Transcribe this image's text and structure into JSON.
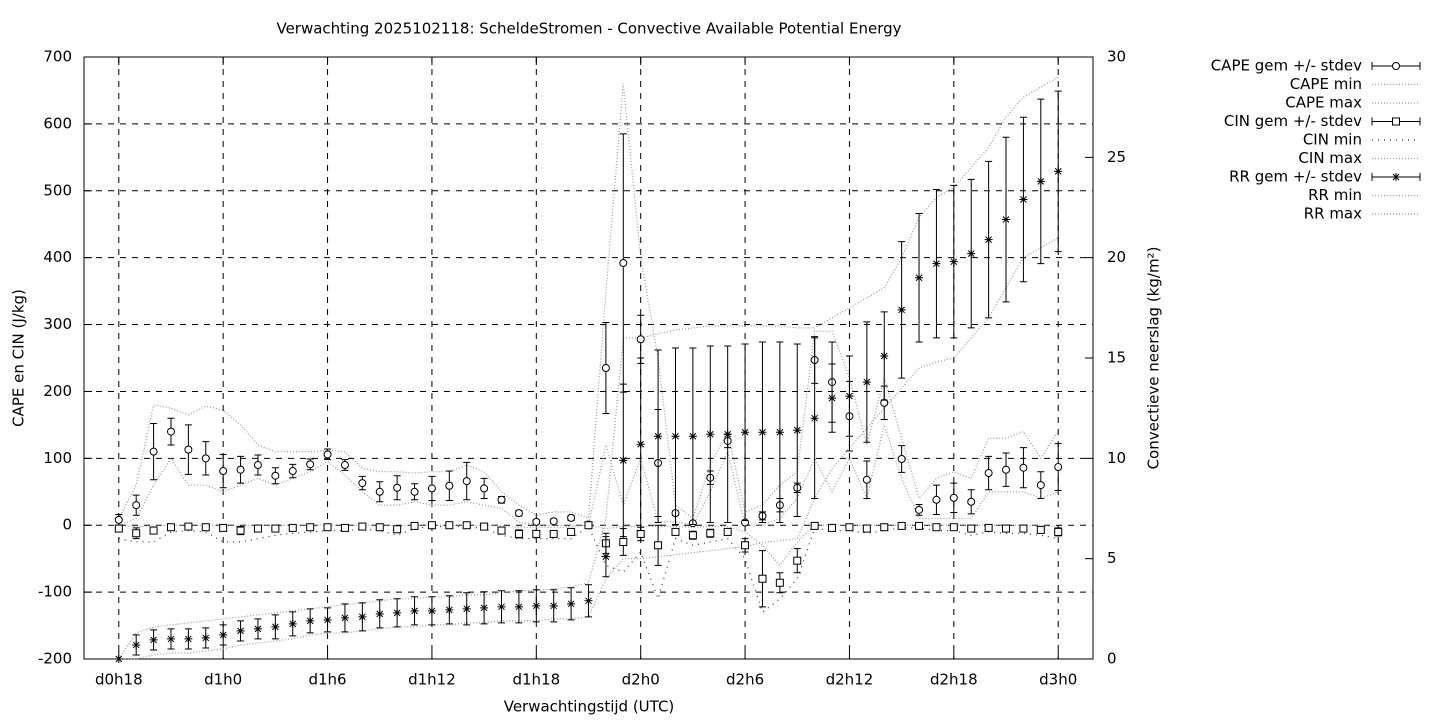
{
  "chart_data": {
    "type": "errorbar",
    "title": "Verwachting 2025102118: ScheldeStromen - Convective Available Potential Energy",
    "xlabel": "Verwachtingstijd (UTC)",
    "ylabel": "CAPE en CIN (J/kg)",
    "y2label": "Convectieve neerslag (kg/m²)",
    "grid": true,
    "legend": "outside-top-right",
    "xlim": [
      16,
      74
    ],
    "xticks": [
      {
        "value": 18,
        "label": "d0h18"
      },
      {
        "value": 24,
        "label": "d1h0"
      },
      {
        "value": 30,
        "label": "d1h6"
      },
      {
        "value": 36,
        "label": "d1h12"
      },
      {
        "value": 42,
        "label": "d1h18"
      },
      {
        "value": 48,
        "label": "d2h0"
      },
      {
        "value": 54,
        "label": "d2h6"
      },
      {
        "value": 60,
        "label": "d2h12"
      },
      {
        "value": 66,
        "label": "d2h18"
      },
      {
        "value": 72,
        "label": "d3h0"
      }
    ],
    "ylim": [
      -200,
      700
    ],
    "yticks": [
      -200,
      -100,
      0,
      100,
      200,
      300,
      400,
      500,
      600,
      700
    ],
    "y2lim": [
      0,
      30
    ],
    "y2ticks": [
      0,
      5,
      10,
      15,
      20,
      25,
      30
    ],
    "x": [
      18,
      19,
      20,
      21,
      22,
      23,
      24,
      25,
      26,
      27,
      28,
      29,
      30,
      31,
      32,
      33,
      34,
      35,
      36,
      37,
      38,
      39,
      40,
      41,
      42,
      43,
      44,
      45,
      46,
      47,
      48,
      49,
      50,
      51,
      52,
      53,
      54,
      55,
      56,
      57,
      58,
      59,
      60,
      61,
      62,
      63,
      64,
      65,
      66,
      67,
      68,
      69,
      70,
      71,
      72
    ],
    "series": [
      {
        "name": "CAPE gem +/- stdev",
        "style": "errorbars",
        "marker": "circle",
        "color": "#000000",
        "values": [
          8,
          30,
          110,
          140,
          113,
          100,
          81,
          83,
          90,
          74,
          81,
          91,
          106,
          90,
          63,
          50,
          56,
          50,
          55,
          59,
          66,
          55,
          38,
          18,
          5,
          6,
          11,
          1,
          235,
          392,
          278,
          93,
          18,
          3,
          71,
          126,
          4,
          14,
          30,
          56,
          247,
          214,
          163,
          68,
          183,
          99,
          23,
          38,
          41,
          35,
          78,
          83,
          86,
          60,
          87
        ],
        "errors": [
          8,
          15,
          42,
          20,
          37,
          25,
          25,
          20,
          15,
          12,
          10,
          8,
          8,
          8,
          10,
          15,
          18,
          12,
          18,
          22,
          28,
          15,
          5,
          4,
          3,
          3,
          4,
          2,
          68,
          193,
          36,
          80,
          3,
          2,
          10,
          10,
          2,
          6,
          10,
          7,
          35,
          60,
          52,
          28,
          25,
          20,
          8,
          22,
          22,
          18,
          25,
          25,
          30,
          20,
          35
        ]
      },
      {
        "name": "CAPE min",
        "style": "dotted",
        "dash": "1 2",
        "color": "#999999",
        "values": [
          0,
          10,
          60,
          100,
          60,
          60,
          50,
          60,
          70,
          60,
          70,
          80,
          95,
          75,
          50,
          30,
          30,
          35,
          30,
          30,
          35,
          30,
          25,
          5,
          0,
          0,
          0,
          0,
          120,
          30,
          100,
          5,
          5,
          0,
          50,
          110,
          0,
          0,
          10,
          40,
          100,
          50,
          100,
          40,
          150,
          70,
          10,
          10,
          10,
          10,
          50,
          50,
          50,
          40,
          50
        ]
      },
      {
        "name": "CAPE max",
        "style": "dotted",
        "dash": "1 2",
        "color": "#999999",
        "values": [
          10,
          60,
          180,
          175,
          165,
          178,
          172,
          150,
          120,
          110,
          110,
          110,
          112,
          110,
          85,
          80,
          80,
          78,
          80,
          80,
          90,
          80,
          50,
          30,
          15,
          20,
          20,
          10,
          350,
          660,
          400,
          250,
          30,
          10,
          90,
          140,
          20,
          30,
          60,
          80,
          290,
          290,
          220,
          120,
          220,
          130,
          40,
          70,
          80,
          70,
          130,
          130,
          140,
          100,
          140
        ]
      },
      {
        "name": "CIN gem +/- stdev",
        "style": "errorbars",
        "marker": "square",
        "color": "#000000",
        "values": [
          -5,
          -12,
          -8,
          -3,
          -2,
          -3,
          -4,
          -8,
          -5,
          -5,
          -4,
          -3,
          -3,
          -4,
          -2,
          -3,
          -6,
          -1,
          0,
          0,
          0,
          -2,
          -8,
          -13,
          -13,
          -13,
          -10,
          0,
          -27,
          -25,
          -13,
          -30,
          -10,
          -15,
          -12,
          -10,
          -30,
          -80,
          -86,
          -53,
          -1,
          -4,
          -3,
          -5,
          -3,
          -1,
          -1,
          -3,
          -3,
          -5,
          -4,
          -5,
          -5,
          -7,
          -10
        ],
        "errors": [
          5,
          8,
          5,
          2,
          2,
          2,
          3,
          6,
          4,
          3,
          3,
          2,
          2,
          2,
          2,
          2,
          3,
          1,
          1,
          1,
          1,
          2,
          4,
          6,
          5,
          5,
          5,
          1,
          15,
          20,
          10,
          30,
          3,
          6,
          6,
          4,
          10,
          42,
          15,
          18,
          1,
          2,
          2,
          3,
          2,
          1,
          1,
          2,
          2,
          4,
          2,
          3,
          3,
          3,
          6
        ]
      },
      {
        "name": "CIN min",
        "style": "dotted",
        "dash": "1 5",
        "color": "#333333",
        "values": [
          -20,
          -25,
          -25,
          -10,
          -8,
          -10,
          -25,
          -25,
          -20,
          -15,
          -12,
          -10,
          -8,
          -8,
          -6,
          -8,
          -15,
          -5,
          -2,
          -2,
          -2,
          -5,
          -15,
          -20,
          -20,
          -20,
          -20,
          -2,
          -60,
          -70,
          -40,
          -110,
          -20,
          -30,
          -25,
          -20,
          -50,
          -130,
          -110,
          -80,
          -5,
          -8,
          -8,
          -12,
          -8,
          -4,
          -4,
          -8,
          -8,
          -15,
          -10,
          -12,
          -12,
          -15,
          -20
        ]
      },
      {
        "name": "CIN max",
        "style": "dotted",
        "dash": "1 2",
        "color": "#999999",
        "values": [
          0,
          -2,
          -1,
          0,
          0,
          0,
          0,
          -1,
          0,
          0,
          0,
          0,
          0,
          0,
          0,
          0,
          -1,
          0,
          0,
          0,
          0,
          0,
          -1,
          -3,
          -3,
          -3,
          -2,
          0,
          -5,
          -2,
          -2,
          -2,
          -2,
          -3,
          -2,
          -2,
          -10,
          -30,
          -60,
          -25,
          0,
          0,
          0,
          0,
          0,
          0,
          0,
          0,
          0,
          0,
          0,
          0,
          0,
          -1,
          -2
        ]
      },
      {
        "name": "RR gem +/- stdev",
        "style": "errorbars",
        "marker": "star",
        "axis": "y2",
        "color": "#000000",
        "values": [
          0,
          0.7,
          0.95,
          1.0,
          1.0,
          1.05,
          1.2,
          1.4,
          1.5,
          1.6,
          1.75,
          1.9,
          1.95,
          2.05,
          2.1,
          2.25,
          2.3,
          2.4,
          2.4,
          2.45,
          2.5,
          2.55,
          2.6,
          2.6,
          2.65,
          2.65,
          2.75,
          2.9,
          5.1,
          9.9,
          10.7,
          11.1,
          11.1,
          11.1,
          11.2,
          11.2,
          11.3,
          11.3,
          11.3,
          11.4,
          12.0,
          13.0,
          13.1,
          13.8,
          15.1,
          17.4,
          19.0,
          19.7,
          19.8,
          20.2,
          20.9,
          21.9,
          22.9,
          23.8,
          24.3
        ],
        "errors": [
          0,
          0.5,
          0.5,
          0.5,
          0.5,
          0.5,
          0.5,
          0.5,
          0.5,
          0.6,
          0.6,
          0.6,
          0.6,
          0.7,
          0.7,
          0.7,
          0.7,
          0.7,
          0.7,
          0.7,
          0.8,
          0.8,
          0.8,
          0.8,
          0.8,
          0.8,
          0.8,
          0.8,
          1.0,
          3.8,
          4.3,
          4.3,
          4.4,
          4.4,
          4.4,
          4.4,
          4.4,
          4.5,
          4.5,
          4.3,
          4.0,
          1.7,
          2.0,
          3.0,
          2.2,
          3.4,
          3.2,
          3.7,
          3.8,
          3.7,
          3.9,
          4.1,
          4.1,
          4.1,
          4.0
        ]
      },
      {
        "name": "RR min",
        "style": "dotted",
        "dash": "1 2",
        "axis": "y2",
        "color": "#999999",
        "values": [
          0,
          0,
          0.2,
          0.3,
          0.3,
          0.4,
          0.5,
          0.7,
          0.8,
          0.9,
          1.0,
          1.2,
          1.3,
          1.3,
          1.4,
          1.5,
          1.6,
          1.6,
          1.7,
          1.7,
          1.8,
          1.8,
          1.9,
          1.9,
          1.9,
          2.0,
          2.0,
          2.1,
          4.0,
          5.0,
          5.0,
          5.1,
          5.2,
          5.3,
          5.4,
          5.5,
          5.6,
          5.8,
          5.9,
          6.0,
          8.0,
          9.5,
          10.5,
          11.5,
          12.5,
          13.5,
          14.5,
          14.8,
          15.0,
          16.0,
          17.0,
          18.5,
          20.0,
          20.5,
          21.0
        ]
      },
      {
        "name": "RR max",
        "style": "dotted",
        "dash": "1 2",
        "axis": "y2",
        "color": "#999999",
        "values": [
          0,
          1.3,
          1.6,
          1.7,
          1.8,
          1.9,
          2.0,
          2.1,
          2.2,
          2.3,
          2.4,
          2.5,
          2.6,
          2.7,
          2.8,
          2.9,
          3.0,
          3.0,
          3.1,
          3.1,
          3.2,
          3.2,
          3.3,
          3.4,
          3.4,
          3.5,
          3.6,
          3.8,
          7.0,
          16.0,
          16.0,
          16.2,
          16.4,
          16.5,
          16.6,
          16.6,
          16.6,
          16.6,
          16.6,
          16.5,
          16.5,
          17.0,
          17.5,
          18.0,
          18.5,
          20.0,
          22.0,
          23.0,
          23.5,
          24.5,
          25.5,
          27.0,
          28.0,
          28.5,
          29.0
        ]
      }
    ]
  }
}
